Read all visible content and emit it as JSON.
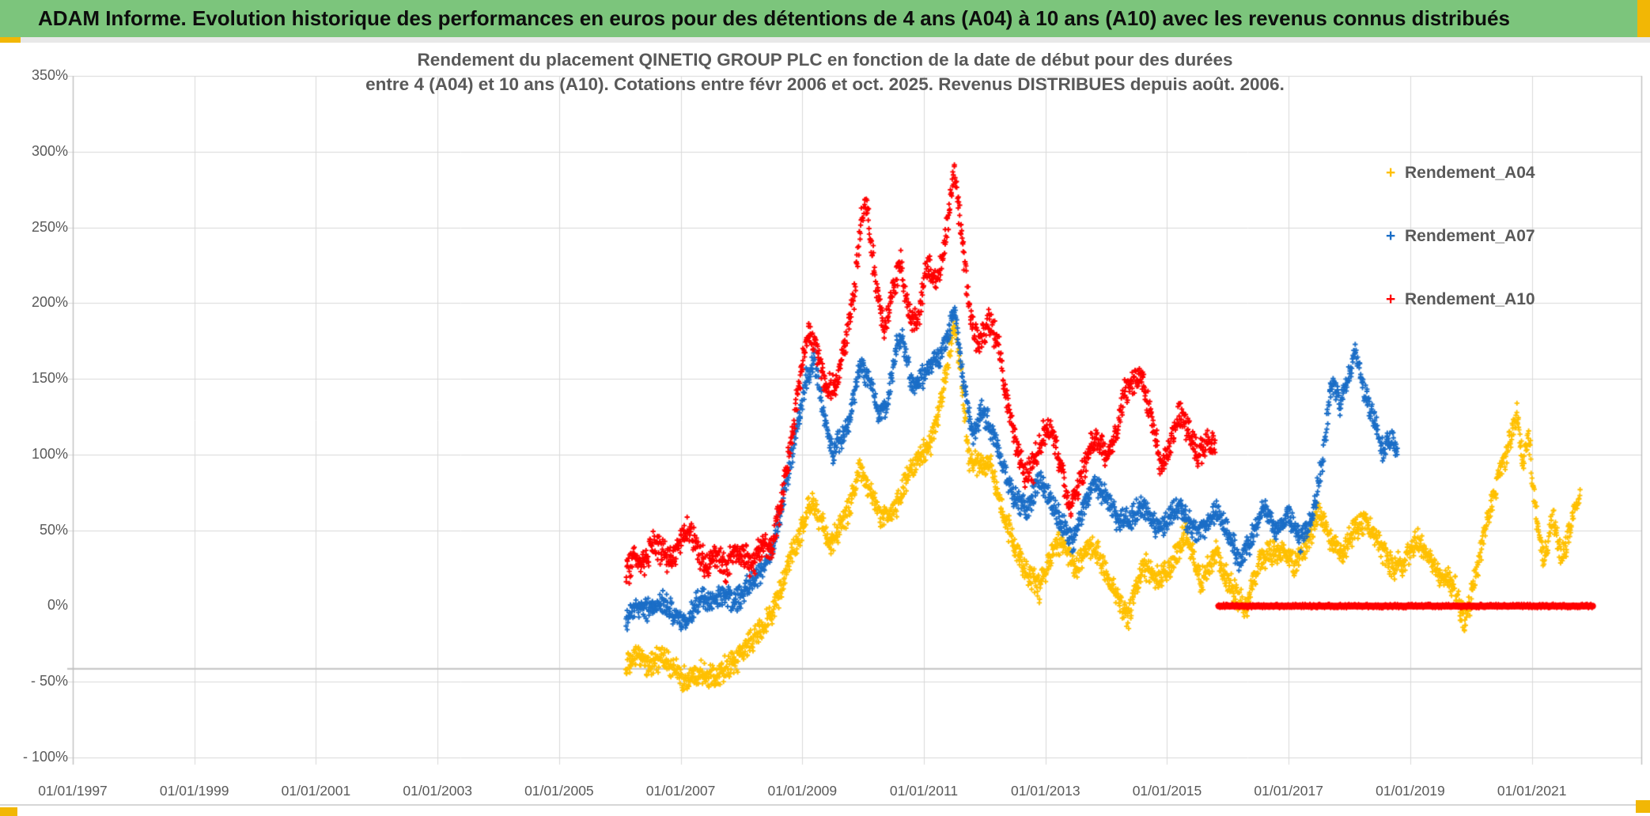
{
  "header": {
    "title": "ADAM Informe. Evolution historique des performances en euros pour des détentions de 4 ans (A04) à 10 ans (A10) avec les revenus connus distribués"
  },
  "chart_data": {
    "type": "scatter",
    "title_line1": "Rendement du placement QINETIQ GROUP PLC en fonction de la date de début pour des durées",
    "title_line2": "entre 4 (A04) et 10 ans (A10). Cotations entre févr 2006 et oct. 2025. Revenus DISTRIBUES depuis août. 2006.",
    "marker": "+",
    "grid": true,
    "colors": {
      "a04": "#FFC000",
      "a07": "#1B6EC7",
      "a10": "#FF0000",
      "gridline": "#D9D9D9",
      "border": "#BFBFBF",
      "text": "#595959",
      "header_green": "#7CC57C",
      "accent_yellow": "#F2B705"
    },
    "x_axis": {
      "tick_labels": [
        "01/01/1997",
        "01/01/1999",
        "01/01/2001",
        "01/01/2003",
        "01/01/2005",
        "01/01/2007",
        "01/01/2009",
        "01/01/2011",
        "01/01/2013",
        "01/01/2015",
        "01/01/2017",
        "01/01/2019",
        "01/01/2021"
      ],
      "tick_years": [
        1997,
        1999,
        2001,
        2003,
        2005,
        2007,
        2009,
        2011,
        2013,
        2015,
        2017,
        2019,
        2021
      ],
      "range_years": [
        1997,
        2022.8
      ]
    },
    "y_axis": {
      "tick_labels": [
        "350%",
        "300%",
        "250%",
        "200%",
        "150%",
        "100%",
        "50%",
        "0%",
        "- 50%",
        "- 100%"
      ],
      "tick_values": [
        350,
        300,
        250,
        200,
        150,
        100,
        50,
        0,
        -50,
        -100
      ],
      "range_pct": [
        -100,
        350
      ],
      "zero_gridline_hidden": true,
      "extra_gridline_pct": -41.5
    },
    "legend": {
      "position": "right",
      "items": [
        {
          "label": "Rendement_A04",
          "color": "#FFC000"
        },
        {
          "label": "Rendement_A07",
          "color": "#1B6EC7"
        },
        {
          "label": "Rendement_A10",
          "color": "#FF0000"
        }
      ]
    },
    "series": [
      {
        "name": "Rendement_A04",
        "color": "#FFC000",
        "holding_years": 4,
        "spread_pct": 10,
        "anchors_year_pct": [
          [
            2006.1,
            -42
          ],
          [
            2006.3,
            -32
          ],
          [
            2006.5,
            -40
          ],
          [
            2006.7,
            -34
          ],
          [
            2006.9,
            -42
          ],
          [
            2007.1,
            -50
          ],
          [
            2007.3,
            -43
          ],
          [
            2007.5,
            -46
          ],
          [
            2007.7,
            -43
          ],
          [
            2007.9,
            -37
          ],
          [
            2008.1,
            -26
          ],
          [
            2008.4,
            -12
          ],
          [
            2008.6,
            5
          ],
          [
            2008.8,
            30
          ],
          [
            2009.0,
            52
          ],
          [
            2009.15,
            70
          ],
          [
            2009.3,
            55
          ],
          [
            2009.45,
            40
          ],
          [
            2009.6,
            50
          ],
          [
            2009.8,
            68
          ],
          [
            2009.95,
            90
          ],
          [
            2010.1,
            78
          ],
          [
            2010.3,
            58
          ],
          [
            2010.5,
            62
          ],
          [
            2010.7,
            82
          ],
          [
            2010.9,
            98
          ],
          [
            2011.1,
            106
          ],
          [
            2011.3,
            138
          ],
          [
            2011.5,
            188
          ],
          [
            2011.6,
            158
          ],
          [
            2011.75,
            96
          ],
          [
            2011.9,
            94
          ],
          [
            2012.1,
            92
          ],
          [
            2012.3,
            62
          ],
          [
            2012.5,
            38
          ],
          [
            2012.7,
            22
          ],
          [
            2012.9,
            12
          ],
          [
            2013.1,
            36
          ],
          [
            2013.3,
            42
          ],
          [
            2013.5,
            25
          ],
          [
            2013.7,
            40
          ],
          [
            2013.9,
            32
          ],
          [
            2014.1,
            12
          ],
          [
            2014.35,
            -8
          ],
          [
            2014.6,
            28
          ],
          [
            2014.8,
            18
          ],
          [
            2015.0,
            22
          ],
          [
            2015.3,
            48
          ],
          [
            2015.55,
            16
          ],
          [
            2015.8,
            36
          ],
          [
            2016.0,
            16
          ],
          [
            2016.3,
            -3
          ],
          [
            2016.5,
            28
          ],
          [
            2016.7,
            34
          ],
          [
            2016.9,
            38
          ],
          [
            2017.1,
            26
          ],
          [
            2017.3,
            42
          ],
          [
            2017.5,
            64
          ],
          [
            2017.7,
            42
          ],
          [
            2017.9,
            36
          ],
          [
            2018.1,
            52
          ],
          [
            2018.3,
            56
          ],
          [
            2018.5,
            38
          ],
          [
            2018.7,
            25
          ],
          [
            2018.9,
            30
          ],
          [
            2019.1,
            46
          ],
          [
            2019.3,
            32
          ],
          [
            2019.5,
            20
          ],
          [
            2019.7,
            15
          ],
          [
            2019.9,
            -10
          ],
          [
            2020.05,
            15
          ],
          [
            2020.2,
            45
          ],
          [
            2020.4,
            78
          ],
          [
            2020.6,
            105
          ],
          [
            2020.75,
            128
          ],
          [
            2020.85,
            92
          ],
          [
            2020.95,
            115
          ],
          [
            2021.05,
            62
          ],
          [
            2021.2,
            32
          ],
          [
            2021.35,
            58
          ],
          [
            2021.5,
            32
          ],
          [
            2021.65,
            55
          ],
          [
            2021.8,
            78
          ]
        ]
      },
      {
        "name": "Rendement_A07",
        "color": "#1B6EC7",
        "holding_years": 7,
        "spread_pct": 9,
        "anchors_year_pct": [
          [
            2006.1,
            -8
          ],
          [
            2006.3,
            0
          ],
          [
            2006.5,
            -4
          ],
          [
            2006.7,
            3
          ],
          [
            2006.9,
            -6
          ],
          [
            2007.1,
            -12
          ],
          [
            2007.3,
            6
          ],
          [
            2007.5,
            1
          ],
          [
            2007.7,
            9
          ],
          [
            2007.9,
            2
          ],
          [
            2008.1,
            12
          ],
          [
            2008.3,
            22
          ],
          [
            2008.5,
            35
          ],
          [
            2008.7,
            75
          ],
          [
            2008.9,
            115
          ],
          [
            2009.05,
            148
          ],
          [
            2009.2,
            162
          ],
          [
            2009.35,
            128
          ],
          [
            2009.5,
            102
          ],
          [
            2009.65,
            110
          ],
          [
            2009.8,
            128
          ],
          [
            2009.95,
            158
          ],
          [
            2010.1,
            148
          ],
          [
            2010.25,
            130
          ],
          [
            2010.4,
            132
          ],
          [
            2010.55,
            172
          ],
          [
            2010.65,
            178
          ],
          [
            2010.8,
            145
          ],
          [
            2010.95,
            150
          ],
          [
            2011.1,
            158
          ],
          [
            2011.25,
            162
          ],
          [
            2011.4,
            180
          ],
          [
            2011.5,
            195
          ],
          [
            2011.65,
            150
          ],
          [
            2011.8,
            112
          ],
          [
            2011.95,
            130
          ],
          [
            2012.1,
            118
          ],
          [
            2012.3,
            92
          ],
          [
            2012.5,
            70
          ],
          [
            2012.7,
            64
          ],
          [
            2012.9,
            82
          ],
          [
            2013.1,
            68
          ],
          [
            2013.3,
            52
          ],
          [
            2013.45,
            42
          ],
          [
            2013.6,
            62
          ],
          [
            2013.8,
            82
          ],
          [
            2014.0,
            72
          ],
          [
            2014.2,
            55
          ],
          [
            2014.4,
            58
          ],
          [
            2014.6,
            68
          ],
          [
            2014.8,
            52
          ],
          [
            2015.0,
            56
          ],
          [
            2015.2,
            66
          ],
          [
            2015.4,
            52
          ],
          [
            2015.6,
            50
          ],
          [
            2015.8,
            62
          ],
          [
            2016.0,
            50
          ],
          [
            2016.2,
            28
          ],
          [
            2016.4,
            46
          ],
          [
            2016.6,
            66
          ],
          [
            2016.8,
            50
          ],
          [
            2017.0,
            60
          ],
          [
            2017.2,
            44
          ],
          [
            2017.4,
            58
          ],
          [
            2017.55,
            95
          ],
          [
            2017.7,
            148
          ],
          [
            2017.85,
            132
          ],
          [
            2018.0,
            152
          ],
          [
            2018.1,
            168
          ],
          [
            2018.25,
            140
          ],
          [
            2018.4,
            124
          ],
          [
            2018.55,
            102
          ],
          [
            2018.7,
            112
          ],
          [
            2018.8,
            98
          ]
        ]
      },
      {
        "name": "Rendement_A10",
        "color": "#FF0000",
        "holding_years": 10,
        "spread_pct": 11,
        "anchors_year_pct": [
          [
            2006.1,
            20
          ],
          [
            2006.25,
            32
          ],
          [
            2006.4,
            27
          ],
          [
            2006.55,
            42
          ],
          [
            2006.7,
            35
          ],
          [
            2006.85,
            28
          ],
          [
            2007.0,
            45
          ],
          [
            2007.15,
            52
          ],
          [
            2007.3,
            34
          ],
          [
            2007.45,
            26
          ],
          [
            2007.6,
            34
          ],
          [
            2007.75,
            24
          ],
          [
            2007.9,
            38
          ],
          [
            2008.05,
            32
          ],
          [
            2008.2,
            28
          ],
          [
            2008.35,
            42
          ],
          [
            2008.5,
            38
          ],
          [
            2008.65,
            68
          ],
          [
            2008.8,
            105
          ],
          [
            2008.95,
            148
          ],
          [
            2009.1,
            183
          ],
          [
            2009.25,
            168
          ],
          [
            2009.4,
            142
          ],
          [
            2009.55,
            150
          ],
          [
            2009.7,
            172
          ],
          [
            2009.85,
            205
          ],
          [
            2009.95,
            250
          ],
          [
            2010.05,
            268
          ],
          [
            2010.2,
            215
          ],
          [
            2010.35,
            182
          ],
          [
            2010.5,
            208
          ],
          [
            2010.62,
            228
          ],
          [
            2010.75,
            192
          ],
          [
            2010.9,
            188
          ],
          [
            2011.05,
            225
          ],
          [
            2011.2,
            212
          ],
          [
            2011.35,
            242
          ],
          [
            2011.5,
            288
          ],
          [
            2011.62,
            245
          ],
          [
            2011.75,
            195
          ],
          [
            2011.9,
            172
          ],
          [
            2012.05,
            188
          ],
          [
            2012.2,
            178
          ],
          [
            2012.35,
            138
          ],
          [
            2012.5,
            112
          ],
          [
            2012.65,
            85
          ],
          [
            2012.8,
            92
          ],
          [
            2012.95,
            112
          ],
          [
            2013.1,
            118
          ],
          [
            2013.25,
            92
          ],
          [
            2013.4,
            66
          ],
          [
            2013.55,
            80
          ],
          [
            2013.7,
            100
          ],
          [
            2013.85,
            112
          ],
          [
            2014.0,
            96
          ],
          [
            2014.15,
            112
          ],
          [
            2014.3,
            142
          ],
          [
            2014.45,
            150
          ],
          [
            2014.6,
            148
          ],
          [
            2014.75,
            122
          ],
          [
            2014.9,
            92
          ],
          [
            2015.05,
            108
          ],
          [
            2015.2,
            128
          ],
          [
            2015.35,
            118
          ],
          [
            2015.5,
            98
          ],
          [
            2015.65,
            110
          ],
          [
            2015.8,
            104
          ]
        ],
        "zero_line_segment": {
          "from_year": 2015.85,
          "to_year": 2022.0,
          "value_pct": 0
        }
      }
    ]
  }
}
